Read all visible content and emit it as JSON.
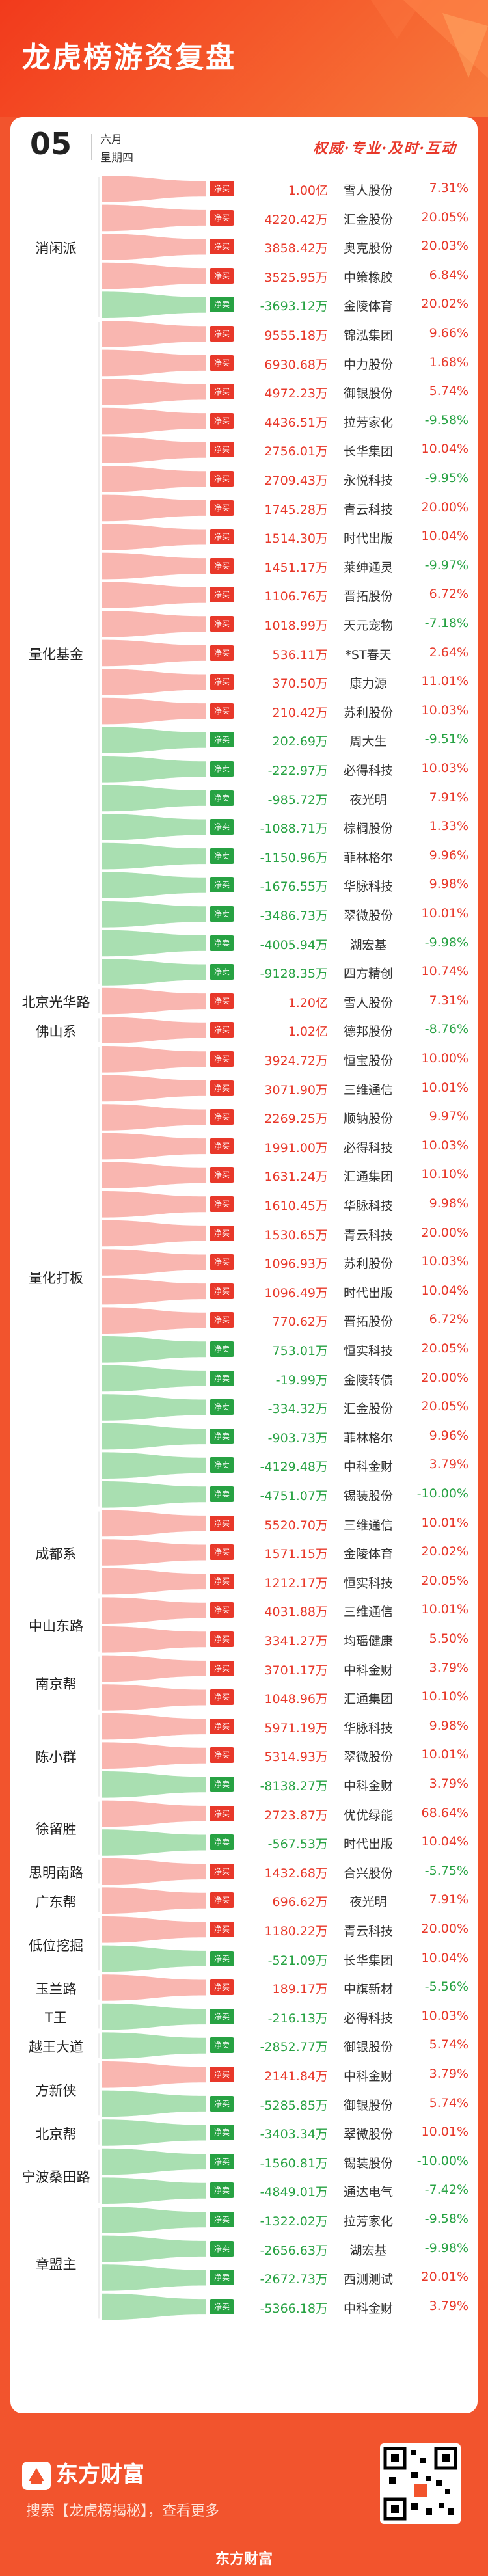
{
  "header": {
    "title": "龙虎榜游资复盘",
    "date_day": "05",
    "date_month": "六月",
    "date_weekday": "星期四",
    "slogan": "权威·专业·及时·互动"
  },
  "colors": {
    "buy": "#e8382a",
    "sell": "#27a243",
    "buy_flow": "#f9b6b0",
    "sell_flow": "#a9dfb1",
    "background": "#f2542d"
  },
  "labels": {
    "buy": "净买",
    "sell": "净卖"
  },
  "groups": [
    {
      "name": "消闲派",
      "rows": [
        {
          "type": "buy",
          "amount": "1.00亿",
          "stock": "雪人股份",
          "change": "7.31%",
          "dir": "up"
        },
        {
          "type": "buy",
          "amount": "4220.42万",
          "stock": "汇金股份",
          "change": "20.05%",
          "dir": "up"
        },
        {
          "type": "buy",
          "amount": "3858.42万",
          "stock": "奥克股份",
          "change": "20.03%",
          "dir": "up"
        },
        {
          "type": "buy",
          "amount": "3525.95万",
          "stock": "中策橡胶",
          "change": "6.84%",
          "dir": "up"
        },
        {
          "type": "sell",
          "amount": "-3693.12万",
          "stock": "金陵体育",
          "change": "20.02%",
          "dir": "up"
        }
      ]
    },
    {
      "name": "量化基金",
      "rows": [
        {
          "type": "buy",
          "amount": "9555.18万",
          "stock": "锦泓集团",
          "change": "9.66%",
          "dir": "up"
        },
        {
          "type": "buy",
          "amount": "6930.68万",
          "stock": "中力股份",
          "change": "1.68%",
          "dir": "up"
        },
        {
          "type": "buy",
          "amount": "4972.23万",
          "stock": "御银股份",
          "change": "5.74%",
          "dir": "up"
        },
        {
          "type": "buy",
          "amount": "4436.51万",
          "stock": "拉芳家化",
          "change": "-9.58%",
          "dir": "down"
        },
        {
          "type": "buy",
          "amount": "2756.01万",
          "stock": "长华集团",
          "change": "10.04%",
          "dir": "up"
        },
        {
          "type": "buy",
          "amount": "2709.43万",
          "stock": "永悦科技",
          "change": "-9.95%",
          "dir": "down"
        },
        {
          "type": "buy",
          "amount": "1745.28万",
          "stock": "青云科技",
          "change": "20.00%",
          "dir": "up"
        },
        {
          "type": "buy",
          "amount": "1514.30万",
          "stock": "时代出版",
          "change": "10.04%",
          "dir": "up"
        },
        {
          "type": "buy",
          "amount": "1451.17万",
          "stock": "莱绅通灵",
          "change": "-9.97%",
          "dir": "down"
        },
        {
          "type": "buy",
          "amount": "1106.76万",
          "stock": "晋拓股份",
          "change": "6.72%",
          "dir": "up"
        },
        {
          "type": "buy",
          "amount": "1018.99万",
          "stock": "天元宠物",
          "change": "-7.18%",
          "dir": "down"
        },
        {
          "type": "buy",
          "amount": "536.11万",
          "stock": "*ST春天",
          "change": "2.64%",
          "dir": "up"
        },
        {
          "type": "buy",
          "amount": "370.50万",
          "stock": "康力源",
          "change": "11.01%",
          "dir": "up"
        },
        {
          "type": "buy",
          "amount": "210.42万",
          "stock": "苏利股份",
          "change": "10.03%",
          "dir": "up"
        },
        {
          "type": "sell",
          "amount": "202.69万",
          "stock": "周大生",
          "change": "-9.51%",
          "dir": "down"
        },
        {
          "type": "sell",
          "amount": "-222.97万",
          "stock": "必得科技",
          "change": "10.03%",
          "dir": "up"
        },
        {
          "type": "sell",
          "amount": "-985.72万",
          "stock": "夜光明",
          "change": "7.91%",
          "dir": "up"
        },
        {
          "type": "sell",
          "amount": "-1088.71万",
          "stock": "棕榈股份",
          "change": "1.33%",
          "dir": "up"
        },
        {
          "type": "sell",
          "amount": "-1150.96万",
          "stock": "菲林格尔",
          "change": "9.96%",
          "dir": "up"
        },
        {
          "type": "sell",
          "amount": "-1676.55万",
          "stock": "华脉科技",
          "change": "9.98%",
          "dir": "up"
        },
        {
          "type": "sell",
          "amount": "-3486.73万",
          "stock": "翠微股份",
          "change": "10.01%",
          "dir": "up"
        },
        {
          "type": "sell",
          "amount": "-4005.94万",
          "stock": "湖宏基",
          "change": "-9.98%",
          "dir": "down"
        },
        {
          "type": "sell",
          "amount": "-9128.35万",
          "stock": "四方精创",
          "change": "10.74%",
          "dir": "up"
        }
      ]
    },
    {
      "name": "北京光华路",
      "rows": [
        {
          "type": "buy",
          "amount": "1.20亿",
          "stock": "雪人股份",
          "change": "7.31%",
          "dir": "up"
        }
      ]
    },
    {
      "name": "佛山系",
      "rows": [
        {
          "type": "buy",
          "amount": "1.02亿",
          "stock": "德邦股份",
          "change": "-8.76%",
          "dir": "down"
        }
      ]
    },
    {
      "name": "量化打板",
      "rows": [
        {
          "type": "buy",
          "amount": "3924.72万",
          "stock": "恒宝股份",
          "change": "10.00%",
          "dir": "up"
        },
        {
          "type": "buy",
          "amount": "3071.90万",
          "stock": "三维通信",
          "change": "10.01%",
          "dir": "up"
        },
        {
          "type": "buy",
          "amount": "2269.25万",
          "stock": "顺钠股份",
          "change": "9.97%",
          "dir": "up"
        },
        {
          "type": "buy",
          "amount": "1991.00万",
          "stock": "必得科技",
          "change": "10.03%",
          "dir": "up"
        },
        {
          "type": "buy",
          "amount": "1631.24万",
          "stock": "汇通集团",
          "change": "10.10%",
          "dir": "up"
        },
        {
          "type": "buy",
          "amount": "1610.45万",
          "stock": "华脉科技",
          "change": "9.98%",
          "dir": "up"
        },
        {
          "type": "buy",
          "amount": "1530.65万",
          "stock": "青云科技",
          "change": "20.00%",
          "dir": "up"
        },
        {
          "type": "buy",
          "amount": "1096.93万",
          "stock": "苏利股份",
          "change": "10.03%",
          "dir": "up"
        },
        {
          "type": "buy",
          "amount": "1096.49万",
          "stock": "时代出版",
          "change": "10.04%",
          "dir": "up"
        },
        {
          "type": "buy",
          "amount": "770.62万",
          "stock": "晋拓股份",
          "change": "6.72%",
          "dir": "up"
        },
        {
          "type": "sell",
          "amount": "753.01万",
          "stock": "恒实科技",
          "change": "20.05%",
          "dir": "up"
        },
        {
          "type": "sell",
          "amount": "-19.99万",
          "stock": "金陵转债",
          "change": "20.00%",
          "dir": "up"
        },
        {
          "type": "sell",
          "amount": "-334.32万",
          "stock": "汇金股份",
          "change": "20.05%",
          "dir": "up"
        },
        {
          "type": "sell",
          "amount": "-903.73万",
          "stock": "菲林格尔",
          "change": "9.96%",
          "dir": "up"
        },
        {
          "type": "sell",
          "amount": "-4129.48万",
          "stock": "中科金财",
          "change": "3.79%",
          "dir": "up"
        },
        {
          "type": "sell",
          "amount": "-4751.07万",
          "stock": "锡装股份",
          "change": "-10.00%",
          "dir": "down"
        }
      ]
    },
    {
      "name": "成都系",
      "rows": [
        {
          "type": "buy",
          "amount": "5520.70万",
          "stock": "三维通信",
          "change": "10.01%",
          "dir": "up"
        },
        {
          "type": "buy",
          "amount": "1571.15万",
          "stock": "金陵体育",
          "change": "20.02%",
          "dir": "up"
        },
        {
          "type": "buy",
          "amount": "1212.17万",
          "stock": "恒实科技",
          "change": "20.05%",
          "dir": "up"
        }
      ]
    },
    {
      "name": "中山东路",
      "rows": [
        {
          "type": "buy",
          "amount": "4031.88万",
          "stock": "三维通信",
          "change": "10.01%",
          "dir": "up"
        },
        {
          "type": "buy",
          "amount": "3341.27万",
          "stock": "均瑶健康",
          "change": "5.50%",
          "dir": "up"
        }
      ]
    },
    {
      "name": "南京帮",
      "rows": [
        {
          "type": "buy",
          "amount": "3701.17万",
          "stock": "中科金财",
          "change": "3.79%",
          "dir": "up"
        },
        {
          "type": "buy",
          "amount": "1048.96万",
          "stock": "汇通集团",
          "change": "10.10%",
          "dir": "up"
        }
      ]
    },
    {
      "name": "陈小群",
      "rows": [
        {
          "type": "buy",
          "amount": "5971.19万",
          "stock": "华脉科技",
          "change": "9.98%",
          "dir": "up"
        },
        {
          "type": "buy",
          "amount": "5314.93万",
          "stock": "翠微股份",
          "change": "10.01%",
          "dir": "up"
        },
        {
          "type": "sell",
          "amount": "-8138.27万",
          "stock": "中科金财",
          "change": "3.79%",
          "dir": "up"
        }
      ]
    },
    {
      "name": "徐留胜",
      "rows": [
        {
          "type": "buy",
          "amount": "2723.87万",
          "stock": "优优绿能",
          "change": "68.64%",
          "dir": "up"
        },
        {
          "type": "sell",
          "amount": "-567.53万",
          "stock": "时代出版",
          "change": "10.04%",
          "dir": "up"
        }
      ]
    },
    {
      "name": "思明南路",
      "rows": [
        {
          "type": "buy",
          "amount": "1432.68万",
          "stock": "合兴股份",
          "change": "-5.75%",
          "dir": "down"
        }
      ]
    },
    {
      "name": "广东帮",
      "rows": [
        {
          "type": "buy",
          "amount": "696.62万",
          "stock": "夜光明",
          "change": "7.91%",
          "dir": "up"
        }
      ]
    },
    {
      "name": "低位挖掘",
      "rows": [
        {
          "type": "buy",
          "amount": "1180.22万",
          "stock": "青云科技",
          "change": "20.00%",
          "dir": "up"
        },
        {
          "type": "sell",
          "amount": "-521.09万",
          "stock": "长华集团",
          "change": "10.04%",
          "dir": "up"
        }
      ]
    },
    {
      "name": "玉兰路",
      "rows": [
        {
          "type": "buy",
          "amount": "189.17万",
          "stock": "中旗新材",
          "change": "-5.56%",
          "dir": "down"
        }
      ]
    },
    {
      "name": "T王",
      "rows": [
        {
          "type": "sell",
          "amount": "-216.13万",
          "stock": "必得科技",
          "change": "10.03%",
          "dir": "up"
        }
      ]
    },
    {
      "name": "越王大道",
      "rows": [
        {
          "type": "sell",
          "amount": "-2852.77万",
          "stock": "御银股份",
          "change": "5.74%",
          "dir": "up"
        }
      ]
    },
    {
      "name": "方新侠",
      "rows": [
        {
          "type": "buy",
          "amount": "2141.84万",
          "stock": "中科金财",
          "change": "3.79%",
          "dir": "up"
        },
        {
          "type": "sell",
          "amount": "-5285.85万",
          "stock": "御银股份",
          "change": "5.74%",
          "dir": "up"
        }
      ]
    },
    {
      "name": "北京帮",
      "rows": [
        {
          "type": "sell",
          "amount": "-3403.34万",
          "stock": "翠微股份",
          "change": "10.01%",
          "dir": "up"
        }
      ]
    },
    {
      "name": "宁波桑田路",
      "rows": [
        {
          "type": "sell",
          "amount": "-1560.81万",
          "stock": "锡装股份",
          "change": "-10.00%",
          "dir": "down"
        },
        {
          "type": "sell",
          "amount": "-4849.01万",
          "stock": "通达电气",
          "change": "-7.42%",
          "dir": "down"
        }
      ]
    },
    {
      "name": "章盟主",
      "rows": [
        {
          "type": "sell",
          "amount": "-1322.02万",
          "stock": "拉芳家化",
          "change": "-9.58%",
          "dir": "down"
        },
        {
          "type": "sell",
          "amount": "-2656.63万",
          "stock": "湖宏基",
          "change": "-9.98%",
          "dir": "down"
        },
        {
          "type": "sell",
          "amount": "-2672.73万",
          "stock": "西测测试",
          "change": "20.01%",
          "dir": "up"
        },
        {
          "type": "sell",
          "amount": "-5366.18万",
          "stock": "中科金财",
          "change": "3.79%",
          "dir": "up"
        }
      ]
    }
  ],
  "footer": {
    "brand": "东方财富",
    "search_hint": "搜索【龙虎榜揭秘】，查看更多",
    "bottom_brand": "东方财富"
  }
}
